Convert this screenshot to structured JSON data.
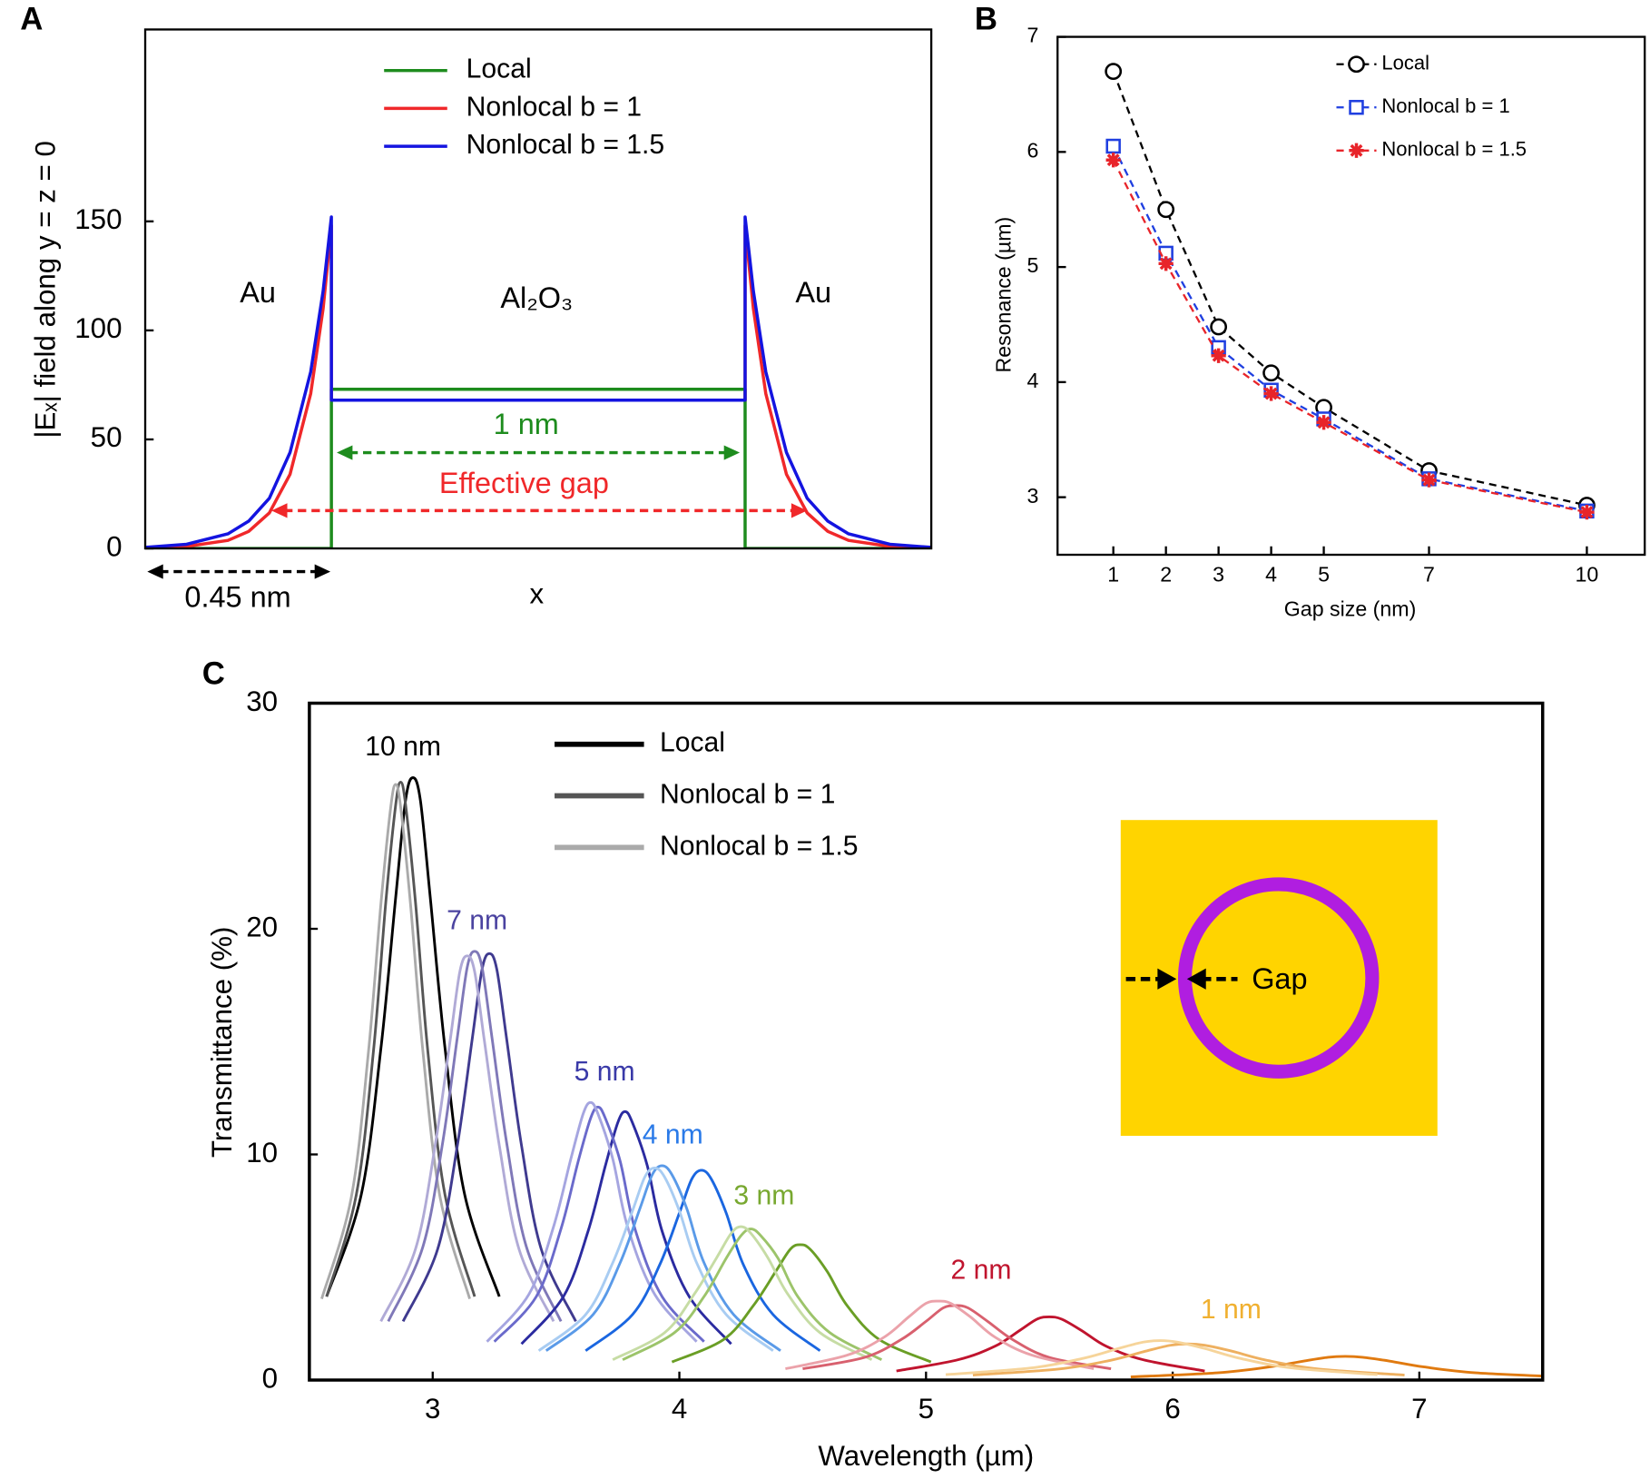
{
  "chart_data": [
    {
      "type": "line",
      "panel": "A",
      "xlabel": "x",
      "ylabel": "|Eₓ| field along y = z = 0",
      "x": [
        -0.45,
        -0.35,
        -0.25,
        -0.2,
        -0.15,
        -0.1,
        -0.05,
        -0.02,
        0,
        0,
        1,
        1,
        1.02,
        1.05,
        1.1,
        1.15,
        1.2,
        1.25,
        1.35,
        1.45
      ],
      "xlim": [
        -0.45,
        1.45
      ],
      "ylim": [
        0,
        238
      ],
      "yticks": [
        0,
        50,
        100,
        150
      ],
      "series": [
        {
          "name": "Local",
          "color": "#1e8c1e",
          "values": [
            0,
            0,
            0,
            0,
            0,
            0,
            0,
            0,
            0,
            73,
            73,
            0,
            0,
            0,
            0,
            0,
            0,
            0,
            0,
            0
          ]
        },
        {
          "name": "Nonlocal b = 1",
          "color": "#f0282a",
          "values": [
            0.2,
            0.9,
            3.7,
            7.8,
            16.3,
            34,
            71,
            110,
            148,
            68,
            68,
            148,
            110,
            71,
            34,
            16.3,
            7.8,
            3.7,
            0.9,
            0.2
          ]
        },
        {
          "name": "Nonlocal b = 1.5",
          "color": "#1414e0",
          "values": [
            0.5,
            1.9,
            6.7,
            12.5,
            23,
            44,
            81,
            118,
            152,
            68,
            68,
            152,
            118,
            81,
            44,
            23,
            12.5,
            6.7,
            1.9,
            0.5
          ]
        }
      ],
      "annotations": [
        {
          "text": "Au",
          "color": "#000000"
        },
        {
          "text": "Al₂O₃",
          "color": "#000000"
        },
        {
          "text": "Au",
          "color": "#000000"
        },
        {
          "text": "1 nm",
          "color": "#1e8c1e"
        },
        {
          "text": "Effective gap",
          "color": "#f0282a"
        },
        {
          "text": "0.45 nm",
          "color": "#000000"
        }
      ]
    },
    {
      "type": "line",
      "panel": "B",
      "xlabel": "Gap size (nm)",
      "ylabel": "Resonance (µm)",
      "x": [
        1,
        2,
        3,
        4,
        5,
        7,
        10
      ],
      "xlim": [
        -0.06,
        11.1
      ],
      "xticks": [
        1,
        2,
        3,
        4,
        5,
        7,
        10
      ],
      "ylim": [
        2.5,
        7
      ],
      "yticks": [
        3,
        4,
        5,
        6,
        7
      ],
      "series": [
        {
          "name": "Local",
          "color": "#000000",
          "marker": "circle",
          "linestyle": "dashed",
          "values": [
            6.7,
            5.5,
            4.48,
            4.08,
            3.78,
            3.23,
            2.93
          ]
        },
        {
          "name": "Nonlocal b = 1",
          "color": "#1f3fe0",
          "marker": "square",
          "linestyle": "dashed",
          "values": [
            6.05,
            5.12,
            4.3,
            3.93,
            3.68,
            3.16,
            2.88
          ]
        },
        {
          "name": "Nonlocal b = 1.5",
          "color": "#e8242a",
          "marker": "star",
          "linestyle": "dashed",
          "values": [
            5.93,
            5.03,
            4.23,
            3.9,
            3.65,
            3.15,
            2.87
          ]
        }
      ]
    },
    {
      "type": "line",
      "panel": "C",
      "xlabel": "Wavelength (µm)",
      "ylabel": "Transmittance (%)",
      "xlim": [
        2.5,
        7.5
      ],
      "xticks": [
        3,
        4,
        5,
        6,
        7
      ],
      "ylim": [
        0,
        30
      ],
      "yticks": [
        0,
        10,
        20,
        30
      ],
      "legend": [
        {
          "name": "Local",
          "color": "#000000"
        },
        {
          "name": "Nonlocal b = 1",
          "color": "#555555"
        },
        {
          "name": "Nonlocal b = 1.5",
          "color": "#aaaaaa"
        }
      ],
      "inset_label": "Gap",
      "groups": [
        {
          "label": "10 nm",
          "color": "#000000",
          "series": [
            {
              "color": "#000000",
              "x": [
                2.57,
                2.71,
                2.79,
                2.85,
                2.89,
                2.92,
                2.95,
                2.99,
                3.05,
                3.13,
                3.27
              ],
              "values": [
                3.7,
                8.2,
                14.7,
                21.4,
                25.7,
                26.7,
                25.7,
                21.4,
                14.7,
                8.2,
                3.7
              ]
            },
            {
              "color": "#555555",
              "x": [
                2.57,
                2.69,
                2.76,
                2.81,
                2.85,
                2.87,
                2.89,
                2.93,
                2.98,
                3.05,
                3.17
              ],
              "values": [
                3.7,
                8.2,
                14.6,
                21.2,
                25.5,
                26.5,
                25.5,
                21.2,
                14.6,
                8.2,
                3.7
              ]
            },
            {
              "color": "#aaaaaa",
              "x": [
                2.55,
                2.67,
                2.74,
                2.79,
                2.83,
                2.85,
                2.87,
                2.91,
                2.96,
                3.03,
                3.15
              ],
              "values": [
                3.6,
                8.1,
                14.6,
                21.1,
                25.4,
                26.4,
                25.4,
                21.1,
                14.6,
                8.1,
                3.6
              ]
            }
          ]
        },
        {
          "label": "7 nm",
          "color": "#4b43a0",
          "series": [
            {
              "color": "#3f3a8f",
              "x": [
                2.88,
                3.02,
                3.1,
                3.16,
                3.2,
                3.23,
                3.26,
                3.3,
                3.36,
                3.44,
                3.58
              ],
              "values": [
                2.6,
                5.8,
                10.4,
                15.1,
                18.2,
                18.9,
                18.2,
                15.1,
                10.4,
                5.8,
                2.6
              ]
            },
            {
              "color": "#7f78b8",
              "x": [
                2.82,
                2.96,
                3.04,
                3.1,
                3.14,
                3.17,
                3.2,
                3.24,
                3.3,
                3.38,
                3.52
              ],
              "values": [
                2.6,
                5.9,
                10.5,
                15.2,
                18.3,
                19,
                18.3,
                15.2,
                10.5,
                5.9,
                2.6
              ]
            },
            {
              "color": "#b0aad6",
              "x": [
                2.79,
                2.93,
                3.01,
                3.07,
                3.11,
                3.14,
                3.17,
                3.21,
                3.27,
                3.35,
                3.49
              ],
              "values": [
                2.6,
                5.8,
                10.4,
                15,
                18.1,
                18.8,
                18.1,
                15,
                10.4,
                5.8,
                2.6
              ]
            }
          ]
        },
        {
          "label": "5 nm",
          "color": "#3a3aa8",
          "series": [
            {
              "color": "#2b2ba0",
              "x": [
                3.36,
                3.53,
                3.63,
                3.7,
                3.75,
                3.78,
                3.81,
                3.87,
                3.93,
                4.04,
                4.21
              ],
              "values": [
                1.6,
                3.7,
                6.6,
                9.5,
                11.4,
                11.9,
                11.4,
                9.5,
                6.6,
                3.7,
                1.6
              ]
            },
            {
              "color": "#6a6acb",
              "x": [
                3.25,
                3.42,
                3.52,
                3.59,
                3.64,
                3.67,
                3.7,
                3.76,
                3.82,
                3.93,
                4.1
              ],
              "values": [
                1.7,
                3.7,
                6.7,
                9.7,
                11.6,
                12.1,
                11.6,
                9.7,
                6.7,
                3.7,
                1.7
              ]
            },
            {
              "color": "#a5a5e0",
              "x": [
                3.22,
                3.39,
                3.49,
                3.56,
                3.61,
                3.64,
                3.67,
                3.73,
                3.79,
                3.9,
                4.07
              ],
              "values": [
                1.7,
                3.8,
                6.8,
                9.8,
                11.8,
                12.3,
                11.8,
                9.8,
                6.8,
                3.8,
                1.7
              ]
            }
          ]
        },
        {
          "label": "4 nm",
          "color": "#2a7ae8",
          "series": [
            {
              "color": "#1a66e0",
              "x": [
                3.62,
                3.81,
                3.92,
                4,
                4.05,
                4.09,
                4.13,
                4.19,
                4.26,
                4.38,
                4.57
              ],
              "values": [
                1.3,
                2.9,
                5.1,
                7.4,
                8.9,
                9.3,
                8.9,
                7.4,
                5.1,
                2.9,
                1.3
              ]
            },
            {
              "color": "#5a9ae8",
              "x": [
                3.46,
                3.65,
                3.76,
                3.84,
                3.89,
                3.93,
                3.97,
                4.03,
                4.1,
                4.22,
                4.41
              ],
              "values": [
                1.3,
                2.9,
                5.2,
                7.6,
                9.1,
                9.5,
                9.1,
                7.6,
                5.2,
                2.9,
                1.3
              ]
            },
            {
              "color": "#a8ccf2",
              "x": [
                3.43,
                3.62,
                3.73,
                3.81,
                3.86,
                3.9,
                3.94,
                4,
                4.07,
                4.19,
                4.38
              ],
              "values": [
                1.3,
                2.9,
                5.2,
                7.5,
                9,
                9.4,
                9,
                7.5,
                5.2,
                2.9,
                1.3
              ]
            }
          ]
        },
        {
          "label": "3 nm",
          "color": "#78a830",
          "series": [
            {
              "color": "#6a9e25",
              "x": [
                3.97,
                4.18,
                4.3,
                4.39,
                4.45,
                4.49,
                4.53,
                4.6,
                4.68,
                4.81,
                5.02
              ],
              "values": [
                0.8,
                1.8,
                3.3,
                4.8,
                5.8,
                6,
                5.8,
                4.8,
                3.3,
                1.8,
                0.8
              ]
            },
            {
              "color": "#9cc46a",
              "x": [
                3.77,
                3.98,
                4.1,
                4.19,
                4.25,
                4.29,
                4.33,
                4.4,
                4.48,
                4.61,
                4.82
              ],
              "values": [
                0.9,
                2.1,
                3.7,
                5.4,
                6.4,
                6.7,
                6.4,
                5.4,
                3.7,
                2.1,
                0.9
              ]
            },
            {
              "color": "#c6dca4",
              "x": [
                3.73,
                3.94,
                4.06,
                4.15,
                4.21,
                4.25,
                4.29,
                4.36,
                4.44,
                4.57,
                4.78
              ],
              "values": [
                0.9,
                2.1,
                3.8,
                5.4,
                6.5,
                6.8,
                6.5,
                5.4,
                3.8,
                2.1,
                0.9
              ]
            }
          ]
        },
        {
          "label": "2 nm",
          "color": "#c0142e",
          "series": [
            {
              "color": "#c0142e",
              "x": [
                4.88,
                5.13,
                5.28,
                5.38,
                5.45,
                5.5,
                5.55,
                5.63,
                5.73,
                5.88,
                6.13
              ],
              "values": [
                0.4,
                0.9,
                1.5,
                2.2,
                2.7,
                2.8,
                2.7,
                2.2,
                1.5,
                0.9,
                0.4
              ]
            },
            {
              "color": "#d8606e",
              "x": [
                4.5,
                4.75,
                4.9,
                5,
                5.07,
                5.12,
                5.17,
                5.25,
                5.35,
                5.5,
                5.75
              ],
              "values": [
                0.5,
                1,
                1.8,
                2.6,
                3.2,
                3.3,
                3.2,
                2.6,
                1.8,
                1,
                0.5
              ]
            },
            {
              "color": "#eba2aa",
              "x": [
                4.43,
                4.68,
                4.83,
                4.93,
                5,
                5.05,
                5.1,
                5.18,
                5.28,
                5.43,
                5.68
              ],
              "values": [
                0.5,
                1.1,
                1.9,
                2.8,
                3.4,
                3.5,
                3.4,
                2.8,
                1.9,
                1.1,
                0.5
              ]
            }
          ]
        },
        {
          "label": "1 nm",
          "color": "#f0b030",
          "series": [
            {
              "color": "#e07a10",
              "x": [
                5.83,
                6.18,
                6.39,
                6.53,
                6.63,
                6.7,
                6.77,
                6.88,
                7.02,
                7.23,
                7.58
              ],
              "values": [
                0.14,
                0.32,
                0.58,
                0.84,
                1.01,
                1.05,
                1.01,
                0.84,
                0.58,
                0.32,
                0.14
              ]
            },
            {
              "color": "#eeb060",
              "x": [
                5.19,
                5.54,
                5.75,
                5.89,
                5.99,
                6.06,
                6.13,
                6.24,
                6.38,
                6.59,
                6.94
              ],
              "values": [
                0.22,
                0.49,
                0.88,
                1.28,
                1.54,
                1.6,
                1.54,
                1.28,
                0.88,
                0.49,
                0.22
              ]
            },
            {
              "color": "#f6d49a",
              "x": [
                5.08,
                5.43,
                5.64,
                5.78,
                5.88,
                5.95,
                6.02,
                6.13,
                6.27,
                6.48,
                6.83
              ],
              "values": [
                0.24,
                0.54,
                0.97,
                1.4,
                1.68,
                1.75,
                1.68,
                1.4,
                0.97,
                0.54,
                0.24
              ]
            }
          ]
        }
      ]
    }
  ]
}
